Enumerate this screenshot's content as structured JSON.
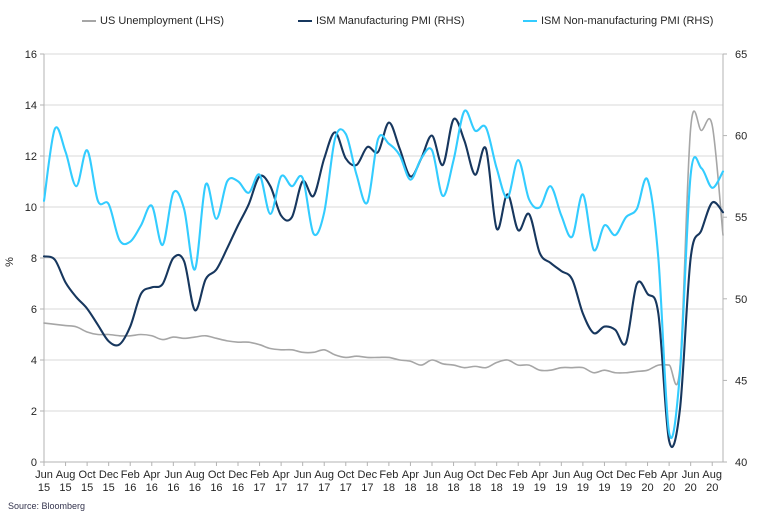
{
  "source": "Source: Bloomberg",
  "legend": [
    {
      "label": "US Unemployment (LHS)",
      "color": "#A6A6A6"
    },
    {
      "label": "ISM Manufacturing PMI (RHS)",
      "color": "#17375E"
    },
    {
      "label": "ISM Non-manufacturing PMI (RHS)",
      "color": "#33CCFF"
    }
  ],
  "colors": {
    "gridline": "#DADADA",
    "axis_box": "#B3B3B3",
    "tick_text": "#262626",
    "unemployment": "#A6A6A6",
    "manufacturing": "#17375E",
    "non_manufacturing": "#33CCFF"
  },
  "chart_data": {
    "type": "line",
    "title": "",
    "xlabel": "",
    "legend_position": "top",
    "grid": "horizontal",
    "x_label_every": 2,
    "left_axis": {
      "label": "%",
      "min": 0,
      "max": 16,
      "ticks": [
        0,
        2,
        4,
        6,
        8,
        10,
        12,
        14,
        16
      ]
    },
    "right_axis": {
      "label": "",
      "min": 40,
      "max": 65,
      "ticks": [
        40,
        45,
        50,
        55,
        60,
        65
      ]
    },
    "x": [
      "Jun 15",
      "Jul 15",
      "Aug 15",
      "Sep 15",
      "Oct 15",
      "Nov 15",
      "Dec 15",
      "Jan 16",
      "Feb 16",
      "Mar 16",
      "Apr 16",
      "May 16",
      "Jun 16",
      "Jul 16",
      "Aug 16",
      "Sep 16",
      "Oct 16",
      "Nov 16",
      "Dec 16",
      "Jan 17",
      "Feb 17",
      "Mar 17",
      "Apr 17",
      "May 17",
      "Jun 17",
      "Jul 17",
      "Aug 17",
      "Sep 17",
      "Oct 17",
      "Nov 17",
      "Dec 17",
      "Jan 18",
      "Feb 18",
      "Mar 18",
      "Apr 18",
      "May 18",
      "Jun 18",
      "Jul 18",
      "Aug 18",
      "Sep 18",
      "Oct 18",
      "Nov 18",
      "Dec 18",
      "Jan 19",
      "Feb 19",
      "Mar 19",
      "Apr 19",
      "May 19",
      "Jun 19",
      "Jul 19",
      "Aug 19",
      "Sep 19",
      "Oct 19",
      "Nov 19",
      "Dec 19",
      "Jan 20",
      "Feb 20",
      "Mar 20",
      "Apr 20",
      "May 20",
      "Jun 20",
      "Jul 20",
      "Aug 20",
      "Sep 20"
    ],
    "series": [
      {
        "name": "US Unemployment (LHS)",
        "axis": "left",
        "color": "#A6A6A6",
        "values": [
          5.45,
          5.4,
          5.35,
          5.3,
          5.1,
          5.0,
          5.0,
          4.95,
          4.95,
          5.0,
          4.95,
          4.8,
          4.9,
          4.85,
          4.9,
          4.95,
          4.85,
          4.75,
          4.7,
          4.7,
          4.6,
          4.45,
          4.4,
          4.4,
          4.3,
          4.3,
          4.4,
          4.2,
          4.1,
          4.15,
          4.1,
          4.1,
          4.1,
          4.0,
          3.95,
          3.8,
          4.0,
          3.85,
          3.8,
          3.7,
          3.75,
          3.7,
          3.9,
          4.0,
          3.8,
          3.8,
          3.6,
          3.6,
          3.7,
          3.7,
          3.7,
          3.5,
          3.6,
          3.5,
          3.5,
          3.55,
          3.6,
          3.8,
          3.8,
          3.7,
          13.1,
          13.0,
          13.2,
          8.9
        ]
      },
      {
        "name": "ISM Manufacturing PMI (RHS)",
        "axis": "right",
        "color": "#17375E",
        "values": [
          52.6,
          52.4,
          51.0,
          50.1,
          49.4,
          48.4,
          47.4,
          47.2,
          48.3,
          50.3,
          50.7,
          50.9,
          52.5,
          52.3,
          49.3,
          51.2,
          51.8,
          53.1,
          54.5,
          55.8,
          57.5,
          56.9,
          55.1,
          55.0,
          57.2,
          56.3,
          58.6,
          60.2,
          58.6,
          58.2,
          59.3,
          59.0,
          60.8,
          59.2,
          57.5,
          58.6,
          60.0,
          58.2,
          61.0,
          59.7,
          57.6,
          59.2,
          54.3,
          56.4,
          54.2,
          55.2,
          52.8,
          52.2,
          51.7,
          51.2,
          49.1,
          47.9,
          48.3,
          48.1,
          47.3,
          50.9,
          50.3,
          49.1,
          41.3,
          43.2,
          52.5,
          54.2,
          55.9,
          55.3
        ]
      },
      {
        "name": "ISM Non-manufacturing PMI (RHS)",
        "axis": "right",
        "color": "#33CCFF",
        "values": [
          56.0,
          60.4,
          59.0,
          56.9,
          59.1,
          56.0,
          55.8,
          53.6,
          53.5,
          54.5,
          55.7,
          53.3,
          56.5,
          55.5,
          51.8,
          57.0,
          54.9,
          57.2,
          57.2,
          56.5,
          57.6,
          55.2,
          57.5,
          56.9,
          57.4,
          54.0,
          55.3,
          59.8,
          60.1,
          57.6,
          55.9,
          59.8,
          59.5,
          58.8,
          57.3,
          58.6,
          59.1,
          56.3,
          58.5,
          61.5,
          60.3,
          60.5,
          58.0,
          56.2,
          58.5,
          56.1,
          55.6,
          56.9,
          55.1,
          53.8,
          56.4,
          53.0,
          54.5,
          53.9,
          55.0,
          55.5,
          57.3,
          52.5,
          41.8,
          45.4,
          57.6,
          58.0,
          56.8,
          57.8
        ]
      }
    ]
  }
}
